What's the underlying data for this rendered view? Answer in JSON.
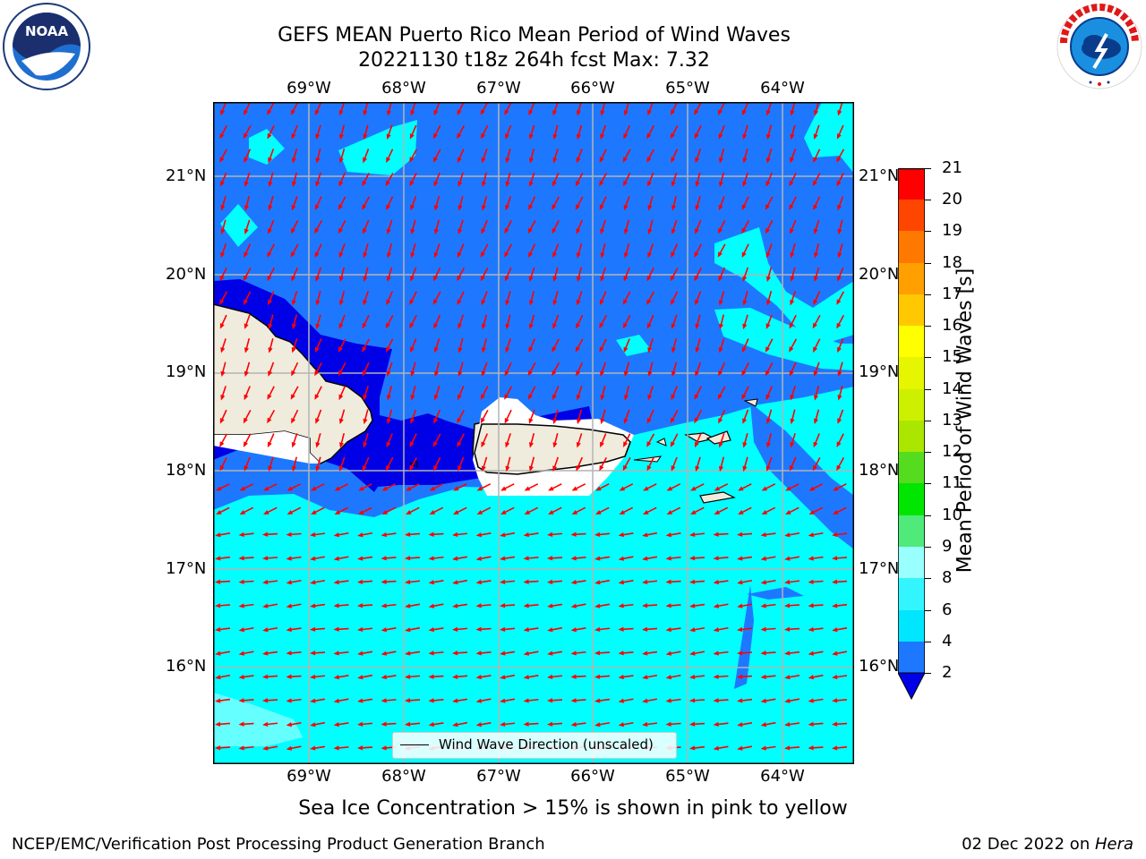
{
  "header": {
    "title_line1": "GEFS MEAN Puerto Rico Mean Period of Wind Waves",
    "title_line2": "20221130 t18z 264h fcst   Max: 7.32"
  },
  "logos": {
    "left": {
      "name": "noaa-logo",
      "text": "NOAA",
      "ring_text": "NATIONAL OCEANIC AND ATMOSPHERIC ADMINISTRATION · U.S. DEPARTMENT OF COMMERCE"
    },
    "right": {
      "name": "nws-logo",
      "ring_text": "NATIONAL WEATHER SERVICE"
    }
  },
  "map": {
    "lon_labels": [
      "69°W",
      "68°W",
      "67°W",
      "66°W",
      "65°W",
      "64°W"
    ],
    "lat_labels": [
      "21°N",
      "20°N",
      "19°N",
      "18°N",
      "17°N",
      "16°N"
    ],
    "extent": {
      "lon_min": -70.0,
      "lon_max": -63.25,
      "lat_min": 15.05,
      "lat_max": 21.75
    },
    "legend_label": "Wind Wave Direction (unscaled)",
    "colors": {
      "ocean_2_4": "#1e78ff",
      "ocean_below_2": "#0000e6",
      "ocean_4_6": "#00ffff",
      "ocean_6_8": "#66ffff",
      "land": "#efecde",
      "arrow": "#ff0000",
      "grid": "#b4b4b4"
    }
  },
  "colorbar": {
    "label": "Mean Period of Wind Waves [s]",
    "ticks": [
      "21",
      "20",
      "19",
      "18",
      "17",
      "16",
      "15",
      "14",
      "13",
      "12",
      "11",
      "10",
      "9",
      "8",
      "6",
      "4",
      "2"
    ],
    "bands": [
      {
        "from": "2",
        "to": "4",
        "color": "#1e78ff"
      },
      {
        "from": "4",
        "to": "6",
        "color": "#00e6ff"
      },
      {
        "from": "6",
        "to": "8",
        "color": "#33f5ff"
      },
      {
        "from": "8",
        "to": "9",
        "color": "#99ffff"
      },
      {
        "from": "9",
        "to": "10",
        "color": "#4fea7a"
      },
      {
        "from": "10",
        "to": "11",
        "color": "#00e600"
      },
      {
        "from": "11",
        "to": "12",
        "color": "#55dc1e"
      },
      {
        "from": "12",
        "to": "13",
        "color": "#aae600"
      },
      {
        "from": "13",
        "to": "14",
        "color": "#ccf000"
      },
      {
        "from": "14",
        "to": "15",
        "color": "#e6f500"
      },
      {
        "from": "15",
        "to": "16",
        "color": "#ffff00"
      },
      {
        "from": "16",
        "to": "17",
        "color": "#ffc800"
      },
      {
        "from": "17",
        "to": "18",
        "color": "#ffa000"
      },
      {
        "from": "18",
        "to": "19",
        "color": "#ff7800"
      },
      {
        "from": "19",
        "to": "20",
        "color": "#ff4600"
      },
      {
        "from": "20",
        "to": "21",
        "color": "#ff0000"
      }
    ],
    "under_color": "#0000e6"
  },
  "notes": {
    "sea_ice": "Sea Ice Concentration > 15% is shown in pink to yellow"
  },
  "footer": {
    "left": "NCEP/EMC/Verification Post Processing Product Generation Branch",
    "date": "02 Dec 2022 on ",
    "machine": "Hera"
  }
}
